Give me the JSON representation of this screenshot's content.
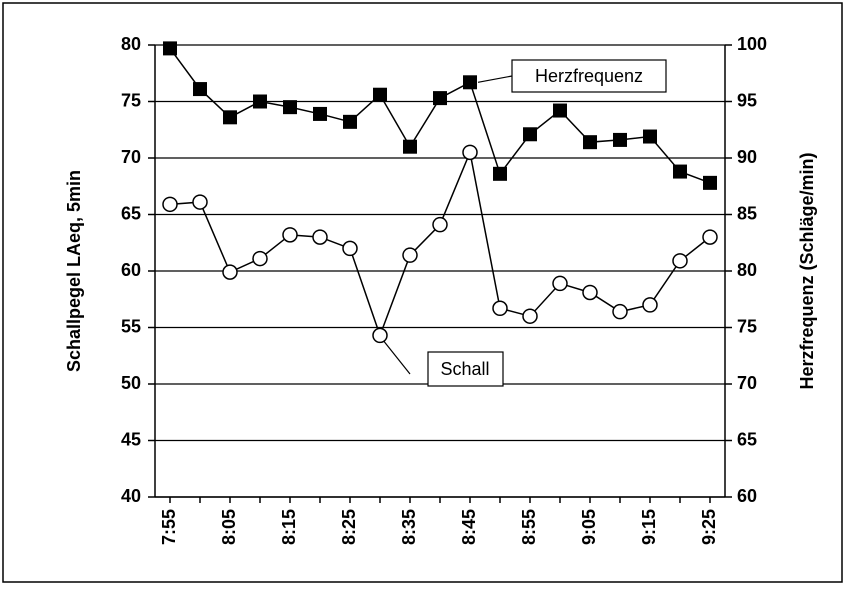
{
  "chart_data": {
    "type": "line",
    "categories": [
      "7:55",
      null,
      "8:05",
      null,
      "8:15",
      null,
      "8:25",
      null,
      "8:35",
      null,
      "8:45",
      null,
      "8:55",
      null,
      "9:05",
      null,
      "9:15",
      null,
      "9:25"
    ],
    "series": [
      {
        "name": "Herzfrequenz",
        "color": "#000000",
        "marker": "square",
        "axis": "y2",
        "values": [
          99.7,
          96.1,
          93.6,
          95.0,
          94.5,
          93.9,
          93.2,
          95.6,
          91.0,
          95.3,
          96.7,
          88.6,
          92.1,
          94.2,
          91.4,
          91.6,
          91.9,
          88.8,
          87.8
        ]
      },
      {
        "name": "Schall",
        "color": "#000000",
        "marker": "circle",
        "values": [
          65.9,
          66.1,
          59.9,
          61.1,
          63.2,
          63.0,
          62.0,
          54.3,
          61.4,
          64.1,
          70.5,
          56.7,
          56.0,
          58.9,
          58.1,
          56.4,
          57.0,
          60.9,
          63.0
        ]
      }
    ],
    "ylabel": "Schallpegel LAeq, 5min",
    "y2label": "Herzfrequenz (Schläge/min)",
    "ylim": [
      40,
      80
    ],
    "yticks": [
      40,
      45,
      50,
      55,
      60,
      65,
      70,
      75,
      80
    ],
    "y2lim": [
      60,
      100
    ],
    "y2ticks": [
      60,
      65,
      70,
      75,
      80,
      85,
      90,
      95,
      100
    ],
    "grid": true
  }
}
